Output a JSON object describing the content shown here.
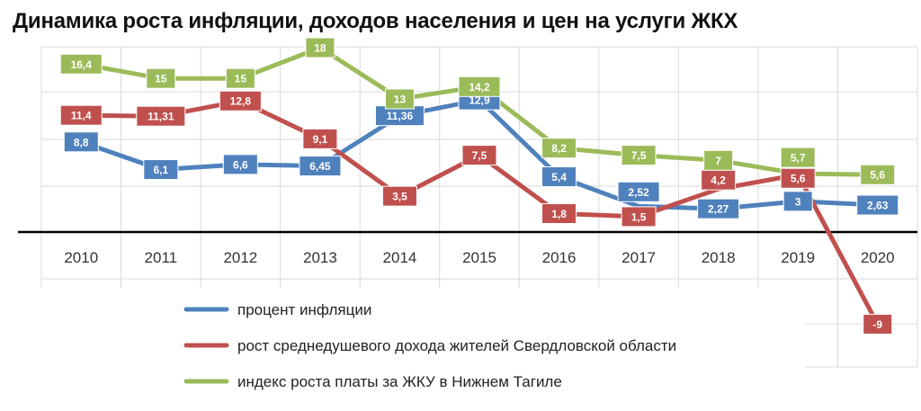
{
  "chart_data": {
    "type": "line",
    "title": "Динамика роста инфляции, доходов населения и цен на услуги ЖКХ",
    "categories": [
      "2010",
      "2011",
      "2012",
      "2013",
      "2014",
      "2015",
      "2016",
      "2017",
      "2018",
      "2019",
      "2020"
    ],
    "series": [
      {
        "name": "процент инфляции",
        "color": "#4f81bd",
        "values": [
          8.8,
          6.1,
          6.6,
          6.45,
          11.36,
          12.9,
          5.4,
          2.52,
          2.27,
          3,
          2.63
        ],
        "labels": [
          "8,8",
          "6,1",
          "6,6",
          "6,45",
          "11,36",
          "12,9",
          "5,4",
          "2,52",
          "2,27",
          "3",
          "2,63"
        ]
      },
      {
        "name": "рост среднедушевого дохода жителей Свердловской области",
        "color": "#c0504d",
        "values": [
          11.4,
          11.31,
          12.8,
          9.1,
          3.5,
          7.5,
          1.8,
          1.5,
          4.2,
          5.6,
          -9
        ],
        "labels": [
          "11,4",
          "11,31",
          "12,8",
          "9,1",
          "3,5",
          "7,5",
          "1,8",
          "1,5",
          "4,2",
          "5,6",
          "-9"
        ]
      },
      {
        "name": "индекс роста платы за ЖКУ в Нижнем Тагиле",
        "color": "#9bbb59",
        "values": [
          16.4,
          15,
          15,
          18,
          13,
          14.2,
          8.2,
          7.5,
          7,
          5.7,
          5.6
        ],
        "labels": [
          "16,4",
          "15",
          "15",
          "18",
          "13",
          "14,2",
          "8,2",
          "7,5",
          "7",
          "5,7",
          "5,6"
        ]
      }
    ],
    "ylim": [
      -12,
      20
    ],
    "grid": true,
    "legend": "bottom-left"
  }
}
